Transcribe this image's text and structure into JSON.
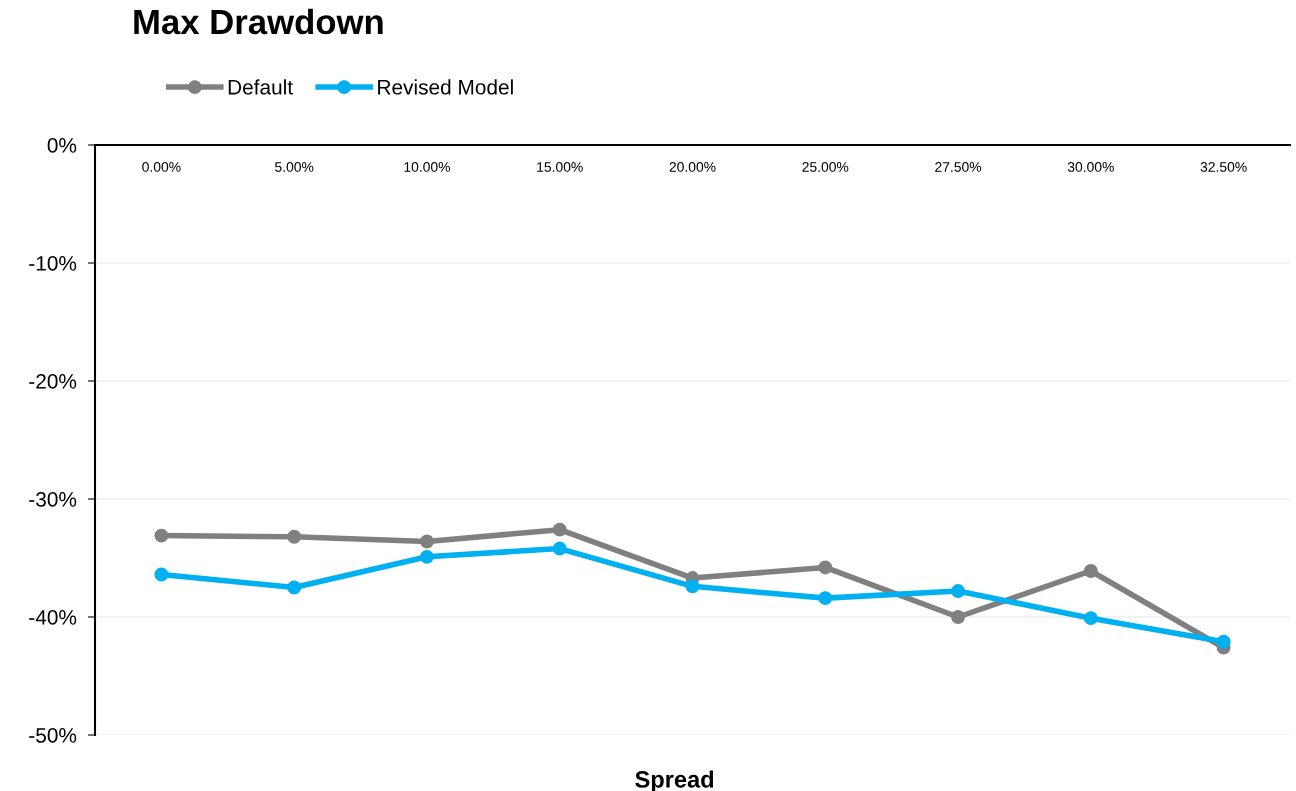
{
  "chart_data": {
    "type": "line",
    "title": "Max Drawdown",
    "xlabel": "Spread",
    "categories": [
      "0.00%",
      "5.00%",
      "10.00%",
      "15.00%",
      "20.00%",
      "25.00%",
      "27.50%",
      "30.00%",
      "32.50%"
    ],
    "series": [
      {
        "name": "Default",
        "color": "#808080",
        "values": [
          -33.1,
          -33.2,
          -33.6,
          -32.6,
          -36.7,
          -35.8,
          -40.0,
          -36.1,
          -42.6
        ]
      },
      {
        "name": "Revised Model",
        "color": "#00b0f0",
        "values": [
          -36.4,
          -37.5,
          -34.9,
          -34.2,
          -37.4,
          -38.4,
          -37.8,
          -40.1,
          -42.1
        ]
      }
    ],
    "ylim": [
      -50,
      0
    ],
    "yticks": [
      {
        "value": -50,
        "label": "-50%"
      },
      {
        "value": -40,
        "label": "-40%"
      },
      {
        "value": -30,
        "label": "-30%"
      },
      {
        "value": -20,
        "label": "-20%"
      },
      {
        "value": -10,
        "label": "-10%"
      },
      {
        "value": 0,
        "label": "0%"
      }
    ],
    "grid": "y",
    "legend": "top left",
    "marker": "circle",
    "line_style": "solid"
  }
}
